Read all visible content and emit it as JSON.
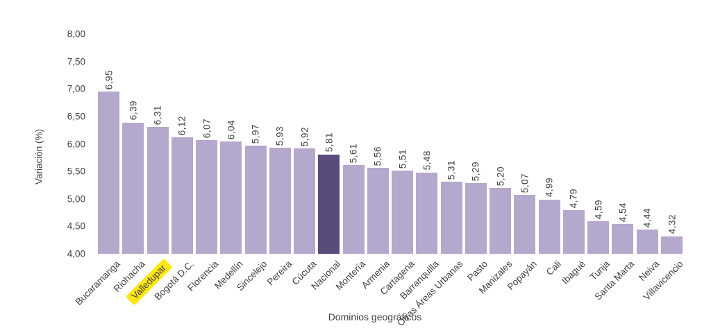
{
  "chart_data": {
    "type": "bar",
    "title": "",
    "xlabel": "Dominios geográficos",
    "ylabel": "Variación (%)",
    "ylim": [
      4.0,
      8.0
    ],
    "ytick_interval": 0.5,
    "ytick_labels": [
      "8,00",
      "7,50",
      "7,00",
      "6,50",
      "6,00",
      "5,50",
      "5,00",
      "4,50",
      "4,00"
    ],
    "grid": false,
    "legend": null,
    "categories": [
      "Bucaramanga",
      "Riohacha",
      "Valledupar",
      "Bogotá D.C.",
      "Florencia",
      "Medellín",
      "Sincelejo",
      "Pereira",
      "Cúcuta",
      "Nacional",
      "Montería",
      "Armenia",
      "Cartagena",
      "Barranquilla",
      "Otras Áreas Urbanas",
      "Pasto",
      "Manizales",
      "Popayán",
      "Cali",
      "Ibagué",
      "Tunja",
      "Santa Marta",
      "Neiva",
      "Villavicencio"
    ],
    "values": [
      6.95,
      6.39,
      6.31,
      6.12,
      6.07,
      6.04,
      5.97,
      5.93,
      5.92,
      5.81,
      5.61,
      5.56,
      5.51,
      5.48,
      5.31,
      5.29,
      5.2,
      5.07,
      4.99,
      4.79,
      4.59,
      4.54,
      4.44,
      4.32
    ],
    "value_labels": [
      "6,95",
      "6,39",
      "6,31",
      "6,12",
      "6,07",
      "6,04",
      "5,97",
      "5,93",
      "5,92",
      "5,81",
      "5,61",
      "5,56",
      "5,51",
      "5,48",
      "5,31",
      "5,29",
      "5,20",
      "5,07",
      "4,99",
      "4,79",
      "4,59",
      "4,54",
      "4,44",
      "4,32"
    ],
    "highlighted_bar_category": "Nacional",
    "highlighted_label_category": "Valledupar"
  },
  "colors": {
    "bar": "#b4a8cc",
    "bar_highlight": "#5a4b7d",
    "label_highlight": "#ffe617",
    "text": "#404040"
  }
}
